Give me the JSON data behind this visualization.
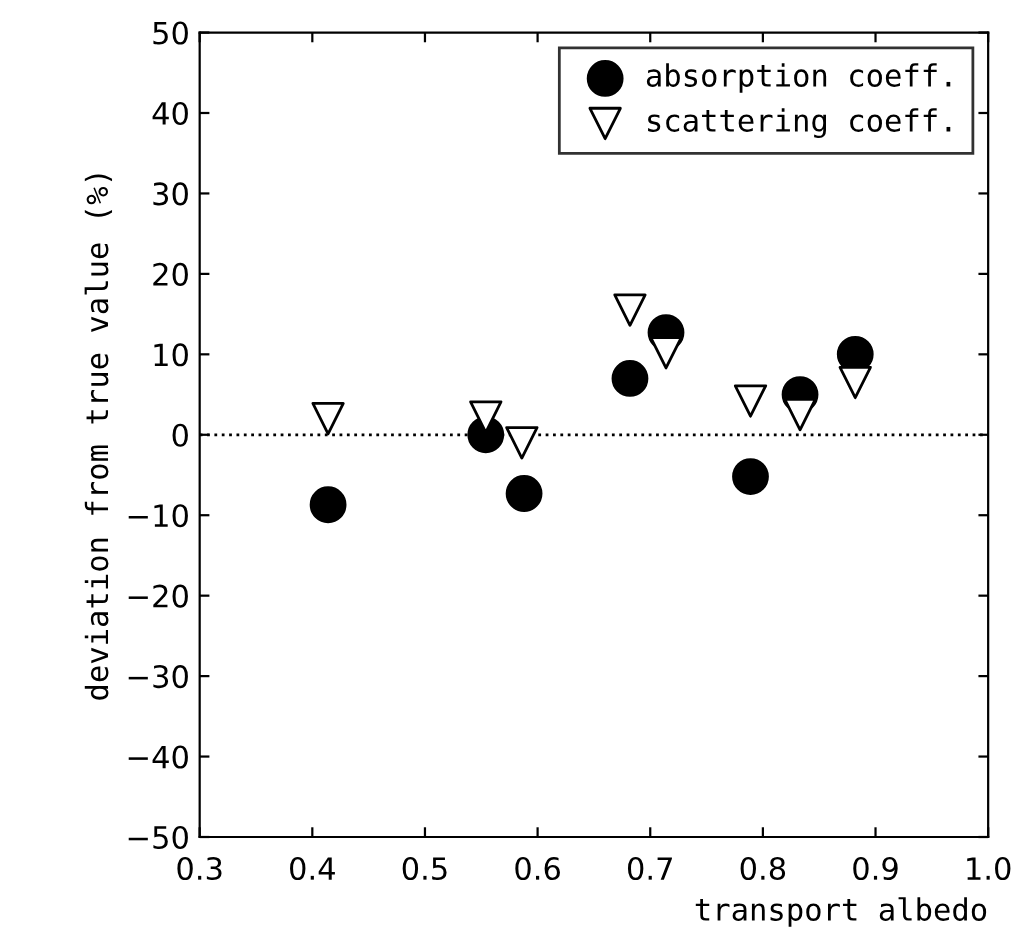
{
  "chart_data": {
    "type": "scatter",
    "xlabel": "transport albedo",
    "ylabel": "deviation from true value (%)",
    "xlim": [
      0.3,
      1.0
    ],
    "xticks": [
      0.3,
      0.4,
      0.5,
      0.6,
      0.7,
      0.8,
      0.9,
      {
        "value": 1.0,
        "label": "1.0"
      }
    ],
    "ylim": [
      -50,
      50
    ],
    "yticks": [
      {
        "value": -50,
        "label": "−50"
      },
      {
        "value": -40,
        "label": "−40"
      },
      {
        "value": -30,
        "label": "−30"
      },
      {
        "value": -20,
        "label": "−20"
      },
      {
        "value": -10,
        "label": "−10"
      },
      0,
      10,
      20,
      30,
      40,
      50
    ],
    "grid": false,
    "legend": "top right",
    "ref_lines": [
      {
        "axis": "y",
        "value": 0,
        "line_style": "dotted",
        "color": "#000000"
      }
    ],
    "series": [
      {
        "name": "absorption coeff.",
        "color": "#000000",
        "marker": "circle",
        "x": [
          0.414,
          0.554,
          0.588,
          0.682,
          0.714,
          0.789,
          0.833,
          0.882
        ],
        "values": [
          -8.7,
          0,
          -7.3,
          7,
          12.7,
          -5.2,
          5,
          10
        ]
      },
      {
        "name": "scattering coeff.",
        "color": "#000000",
        "marker": "triangle",
        "x": [
          0.414,
          0.554,
          0.586,
          0.682,
          0.714,
          0.789,
          0.833,
          0.882
        ],
        "values": [
          2,
          2.2,
          -1,
          15.5,
          10.2,
          4.2,
          2.5,
          6.5
        ]
      }
    ]
  }
}
